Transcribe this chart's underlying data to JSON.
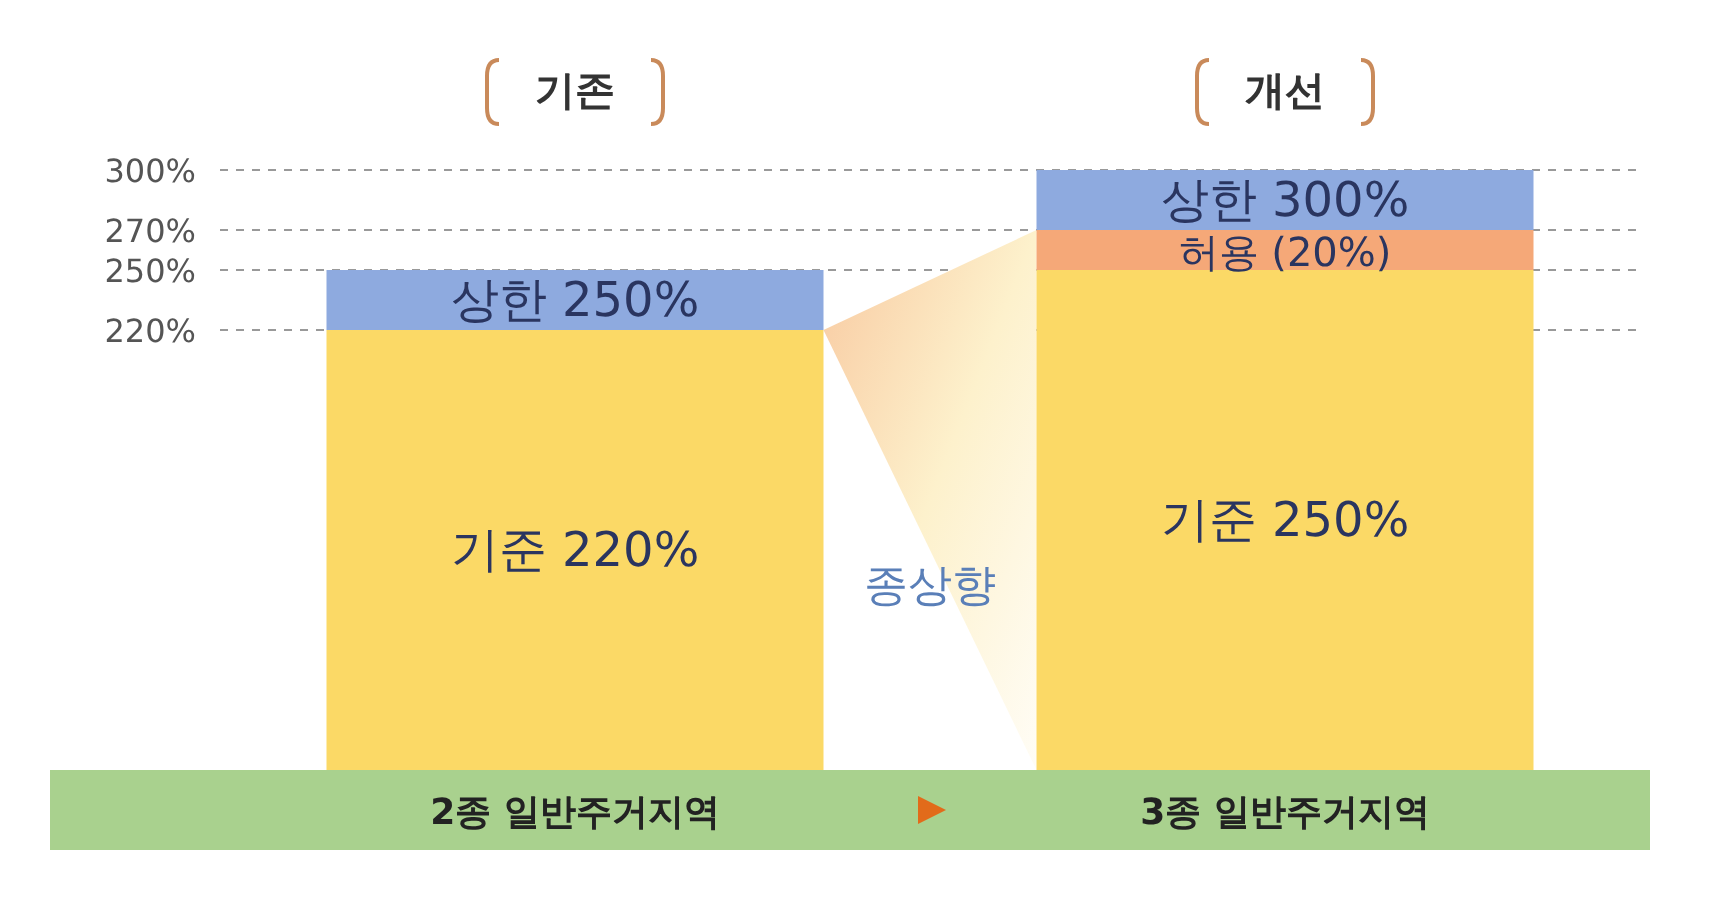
{
  "chart_data": {
    "type": "bar",
    "stacked": true,
    "categories": [
      "2종 일반주거지역",
      "3종 일반주거지역"
    ],
    "series": [
      {
        "color": "#fbd966",
        "values": [
          220,
          250
        ],
        "value_labels": [
          "기준 220%",
          "기준 250%"
        ]
      },
      {
        "color": "#f5a878",
        "values": [
          null,
          20
        ],
        "value_labels": [
          null,
          "허용 (20%)"
        ]
      },
      {
        "color": "#8eaadf",
        "values": [
          30,
          30
        ],
        "value_labels": [
          "상한 250%",
          "상한 300%"
        ]
      }
    ],
    "ylim": [
      0,
      300
    ],
    "yticks": [
      {
        "value": 220,
        "label": "220%"
      },
      {
        "value": 250,
        "label": "250%"
      },
      {
        "value": 270,
        "label": "270%"
      },
      {
        "value": 300,
        "label": "300%"
      }
    ],
    "grid": "y",
    "annotations": [
      "기존",
      "개선",
      "종상향"
    ]
  }
}
